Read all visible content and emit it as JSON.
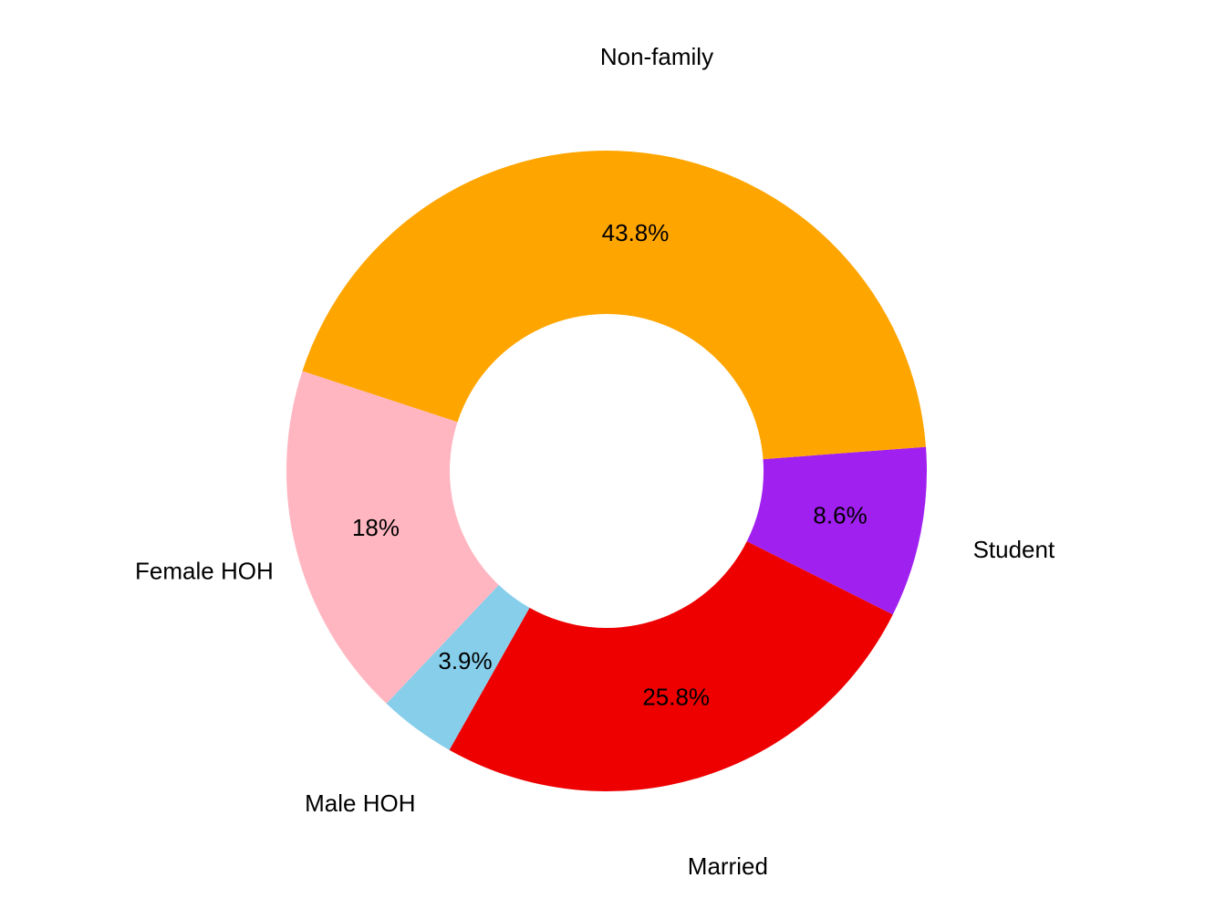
{
  "chart_data": {
    "type": "donut",
    "categories": [
      "Student",
      "Married",
      "Male HOH",
      "Female HOH",
      "Non-family"
    ],
    "values": [
      8.6,
      25.8,
      3.9,
      18,
      43.8
    ],
    "value_labels": [
      "8.6%",
      "25.8%",
      "3.9%",
      "18%",
      "43.8%"
    ],
    "colors": [
      "#a020f0",
      "#ee0000",
      "#87ceeb",
      "#ffb6c1",
      "#ffa500"
    ]
  }
}
